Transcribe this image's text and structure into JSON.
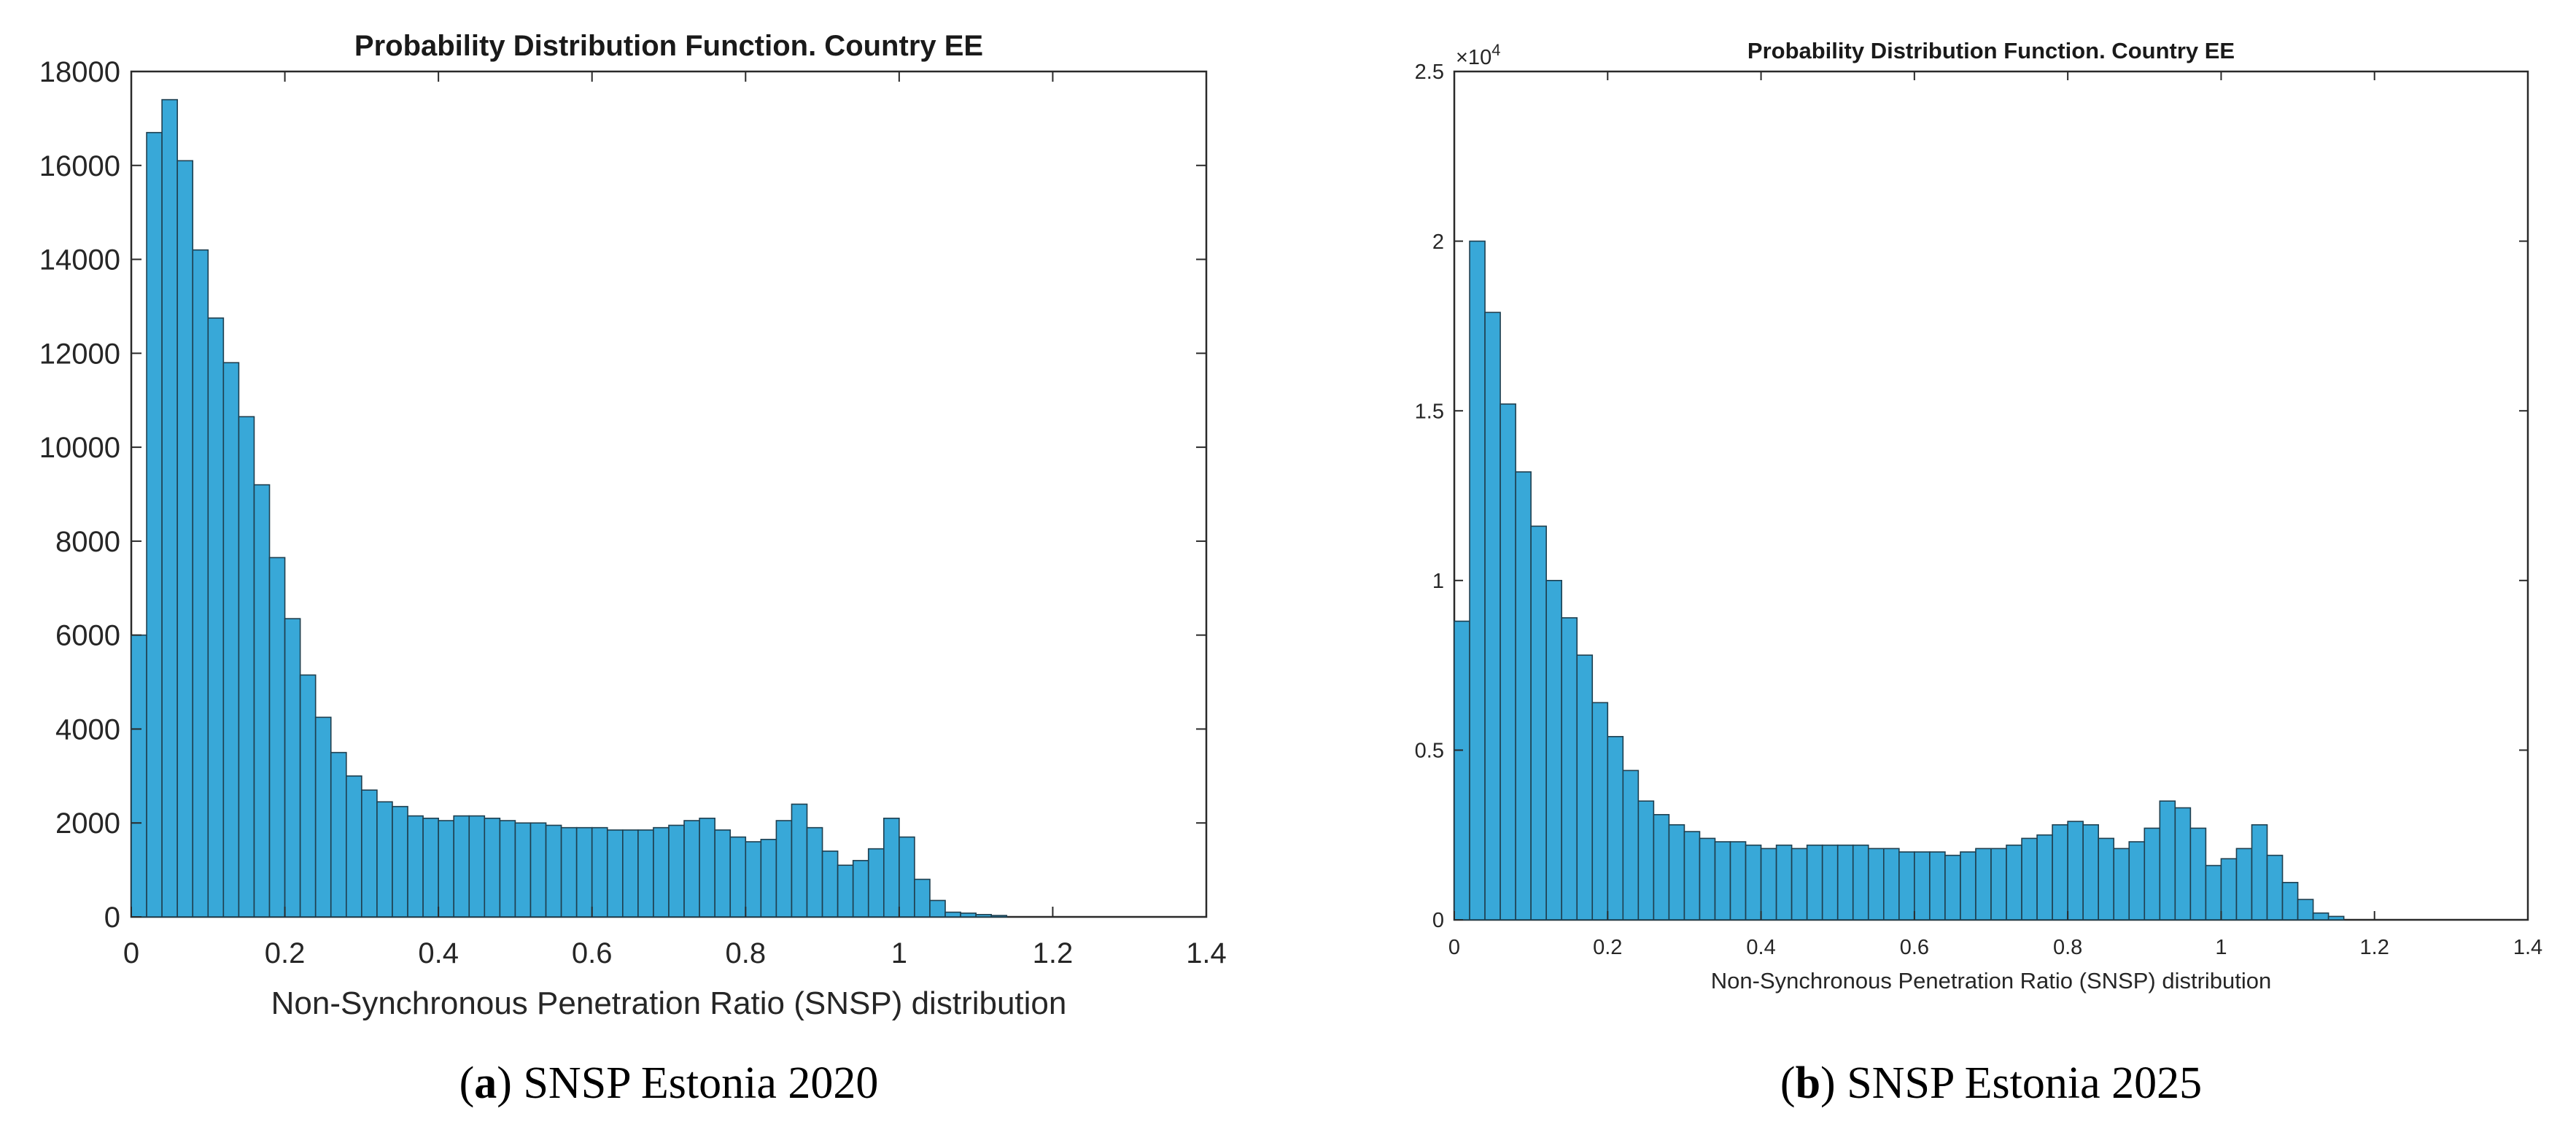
{
  "chart_data": [
    {
      "type": "bar",
      "title": "Probability Distribution Function. Country EE",
      "xlabel": "Non-Synchronous Penetration Ratio (SNSP) distribution",
      "ylabel": "",
      "caption_letter": "a",
      "caption_text": ") SNSP Estonia 2020",
      "caption_open": "(",
      "xlim": [
        0,
        1.4
      ],
      "ylim": [
        0,
        18000
      ],
      "x_ticks": [
        0,
        0.2,
        0.4,
        0.6,
        0.8,
        1,
        1.2,
        1.4
      ],
      "x_tick_labels": [
        "0",
        "0.2",
        "0.4",
        "0.6",
        "0.8",
        "1",
        "1.2",
        "1.4"
      ],
      "y_ticks": [
        0,
        2000,
        4000,
        6000,
        8000,
        10000,
        12000,
        14000,
        16000,
        18000
      ],
      "y_tick_labels": [
        "0",
        "2000",
        "4000",
        "6000",
        "8000",
        "10000",
        "12000",
        "14000",
        "16000",
        "18000"
      ],
      "exponent_label": "",
      "bin_width": 0.02,
      "bin_start": 0,
      "values": [
        6000,
        16700,
        17400,
        16100,
        14200,
        12750,
        11800,
        10650,
        9200,
        7650,
        6350,
        5150,
        4250,
        3500,
        3000,
        2700,
        2450,
        2350,
        2150,
        2100,
        2050,
        2150,
        2150,
        2100,
        2050,
        2000,
        2000,
        1950,
        1900,
        1900,
        1900,
        1850,
        1850,
        1850,
        1900,
        1950,
        2050,
        2100,
        1850,
        1700,
        1600,
        1650,
        2050,
        2400,
        1900,
        1400,
        1100,
        1200,
        1450,
        2100,
        1700,
        800,
        350,
        100,
        80,
        50,
        30,
        0,
        0,
        0,
        0,
        0,
        0,
        0,
        0,
        0,
        0,
        0,
        0,
        0
      ],
      "bar_color": "#38a8d8",
      "edge_color": "#1f3f4f"
    },
    {
      "type": "bar",
      "title": "Probability Distribution Function. Country EE",
      "xlabel": "Non-Synchronous Penetration Ratio (SNSP) distribution",
      "ylabel": "",
      "caption_letter": "b",
      "caption_text": ") SNSP Estonia 2025",
      "caption_open": "(",
      "xlim": [
        0,
        1.4
      ],
      "ylim": [
        0,
        25000
      ],
      "x_ticks": [
        0,
        0.2,
        0.4,
        0.6,
        0.8,
        1,
        1.2,
        1.4
      ],
      "x_tick_labels": [
        "0",
        "0.2",
        "0.4",
        "0.6",
        "0.8",
        "1",
        "1.2",
        "1.4"
      ],
      "y_ticks": [
        0,
        5000,
        10000,
        15000,
        20000,
        25000
      ],
      "y_tick_labels": [
        "0",
        "0.5",
        "1",
        "1.5",
        "2",
        "2.5"
      ],
      "exponent_label": "×10",
      "exponent_power": "4",
      "bin_width": 0.02,
      "bin_start": 0,
      "values": [
        8800,
        20000,
        17900,
        15200,
        13200,
        11600,
        10000,
        8900,
        7800,
        6400,
        5400,
        4400,
        3500,
        3100,
        2800,
        2600,
        2400,
        2300,
        2300,
        2200,
        2100,
        2200,
        2100,
        2200,
        2200,
        2200,
        2200,
        2100,
        2100,
        2000,
        2000,
        2000,
        1900,
        2000,
        2100,
        2100,
        2200,
        2400,
        2500,
        2800,
        2900,
        2800,
        2400,
        2100,
        2300,
        2700,
        3500,
        3300,
        2700,
        1600,
        1800,
        2100,
        2800,
        1900,
        1100,
        600,
        200,
        100,
        0,
        0,
        0,
        0,
        0,
        0,
        0,
        0,
        0,
        0,
        0,
        0
      ],
      "bar_color": "#38a8d8",
      "edge_color": "#1f3f4f"
    }
  ]
}
